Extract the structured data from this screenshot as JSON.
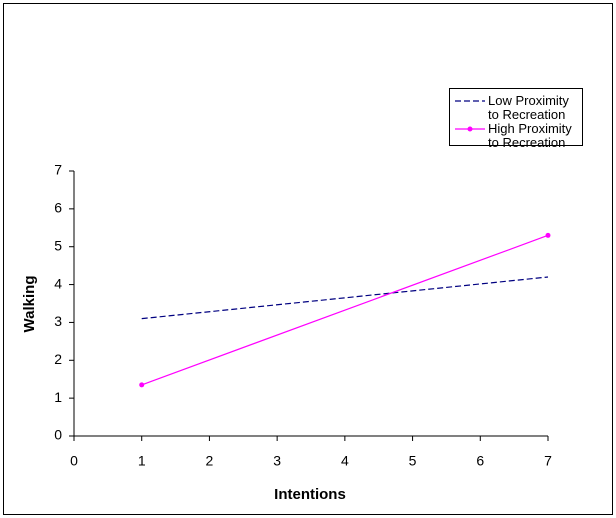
{
  "chart_data": {
    "type": "line",
    "xlabel": "Intentions",
    "ylabel": "Walking",
    "x": [
      1,
      7
    ],
    "series": [
      {
        "name": "Low Proximity to Recreation",
        "color": "#000080",
        "dashed": true,
        "marker": false,
        "values": [
          3.1,
          4.2
        ]
      },
      {
        "name": "High Proximity to Recreation",
        "color": "#ff00ff",
        "dashed": false,
        "marker": true,
        "values": [
          1.35,
          5.3
        ]
      }
    ],
    "xlim": [
      0,
      7
    ],
    "xticks": [
      0,
      1,
      2,
      3,
      4,
      5,
      6,
      7
    ],
    "ylim": [
      0,
      7
    ],
    "yticks": [
      0,
      1,
      2,
      3,
      4,
      5,
      6,
      7
    ],
    "grid": false,
    "legend": "upper right"
  }
}
